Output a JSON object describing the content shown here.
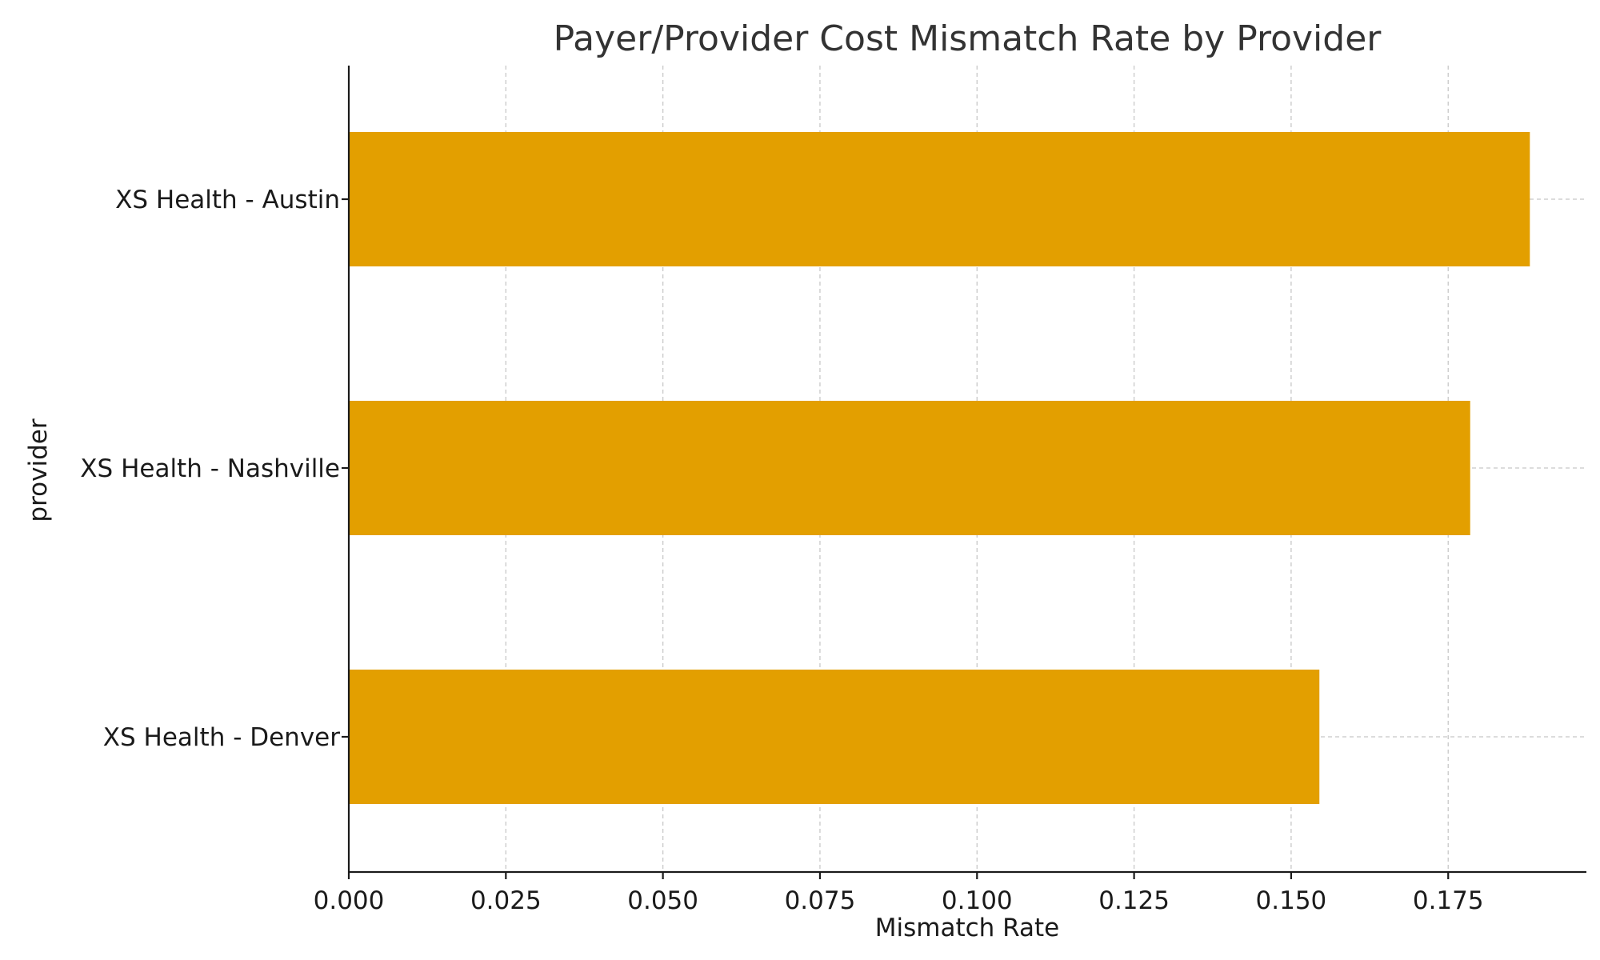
{
  "chart_data": {
    "type": "bar",
    "orientation": "horizontal",
    "title": "Payer/Provider Cost Mismatch Rate by Provider",
    "xlabel": "Mismatch Rate",
    "ylabel": "provider",
    "categories": [
      "XS Health - Austin",
      "XS Health - Nashville",
      "XS Health - Denver"
    ],
    "values": [
      0.188,
      0.1785,
      0.1545
    ],
    "xlim": [
      0,
      0.197
    ],
    "xticks": [
      0.0,
      0.025,
      0.05,
      0.075,
      0.1,
      0.125,
      0.15,
      0.175
    ],
    "xtick_labels": [
      "0.000",
      "0.025",
      "0.050",
      "0.075",
      "0.100",
      "0.125",
      "0.150",
      "0.175"
    ],
    "grid": true,
    "colors": {
      "bar": "#E39F00"
    }
  }
}
